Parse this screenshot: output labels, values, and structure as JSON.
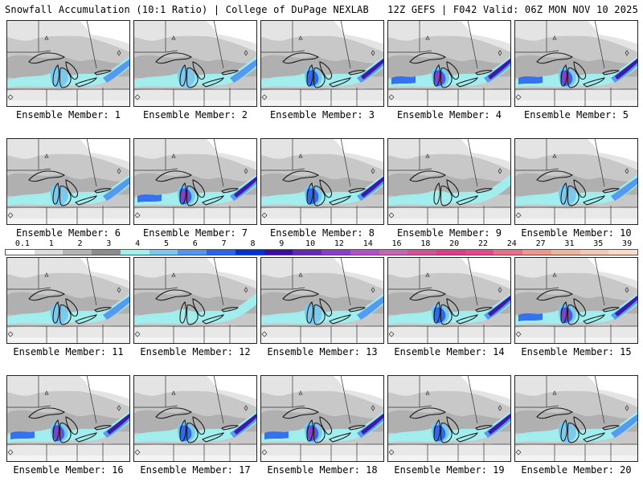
{
  "header": {
    "title": "Snowfall Accumulation (10:1 Ratio) | College of DuPage NEXLAB",
    "run_info": "12Z GEFS | F042 Valid: 06Z MON NOV 10 2025"
  },
  "legend": {
    "labels": [
      "0.1",
      "1",
      "2",
      "3",
      "4",
      "5",
      "6",
      "7",
      "8",
      "9",
      "10",
      "12",
      "14",
      "16",
      "18",
      "20",
      "22",
      "24",
      "27",
      "31",
      "35",
      "39"
    ],
    "colors": [
      "#ffffff",
      "#dcdcdc",
      "#b4b4b4",
      "#8c8c8c",
      "#a0f0f0",
      "#78c8f0",
      "#5096f0",
      "#2864f0",
      "#0030d8",
      "#3c0ca0",
      "#6428b4",
      "#8c3cc8",
      "#b450c8",
      "#c864b4",
      "#d25096",
      "#dc3c8c",
      "#e6468c",
      "#e86e8c",
      "#f0968c",
      "#f0b49c",
      "#f5c8b4",
      "#fadcc8"
    ]
  },
  "members": [
    {
      "label": "Ensemble Member: 1",
      "intensity": 2
    },
    {
      "label": "Ensemble Member: 2",
      "intensity": 2
    },
    {
      "label": "Ensemble Member: 3",
      "intensity": 3
    },
    {
      "label": "Ensemble Member: 4",
      "intensity": 4
    },
    {
      "label": "Ensemble Member: 5",
      "intensity": 4
    },
    {
      "label": "Ensemble Member: 6",
      "intensity": 2
    },
    {
      "label": "Ensemble Member: 7",
      "intensity": 4
    },
    {
      "label": "Ensemble Member: 8",
      "intensity": 3
    },
    {
      "label": "Ensemble Member: 9",
      "intensity": 1
    },
    {
      "label": "Ensemble Member: 10",
      "intensity": 2
    },
    {
      "label": "Ensemble Member: 11",
      "intensity": 2
    },
    {
      "label": "Ensemble Member: 12",
      "intensity": 1
    },
    {
      "label": "Ensemble Member: 13",
      "intensity": 2
    },
    {
      "label": "Ensemble Member: 14",
      "intensity": 3
    },
    {
      "label": "Ensemble Member: 15",
      "intensity": 4
    },
    {
      "label": "Ensemble Member: 16",
      "intensity": 4
    },
    {
      "label": "Ensemble Member: 17",
      "intensity": 3
    },
    {
      "label": "Ensemble Member: 18",
      "intensity": 4
    },
    {
      "label": "Ensemble Member: 19",
      "intensity": 3
    },
    {
      "label": "Ensemble Member: 20",
      "intensity": 2
    }
  ]
}
